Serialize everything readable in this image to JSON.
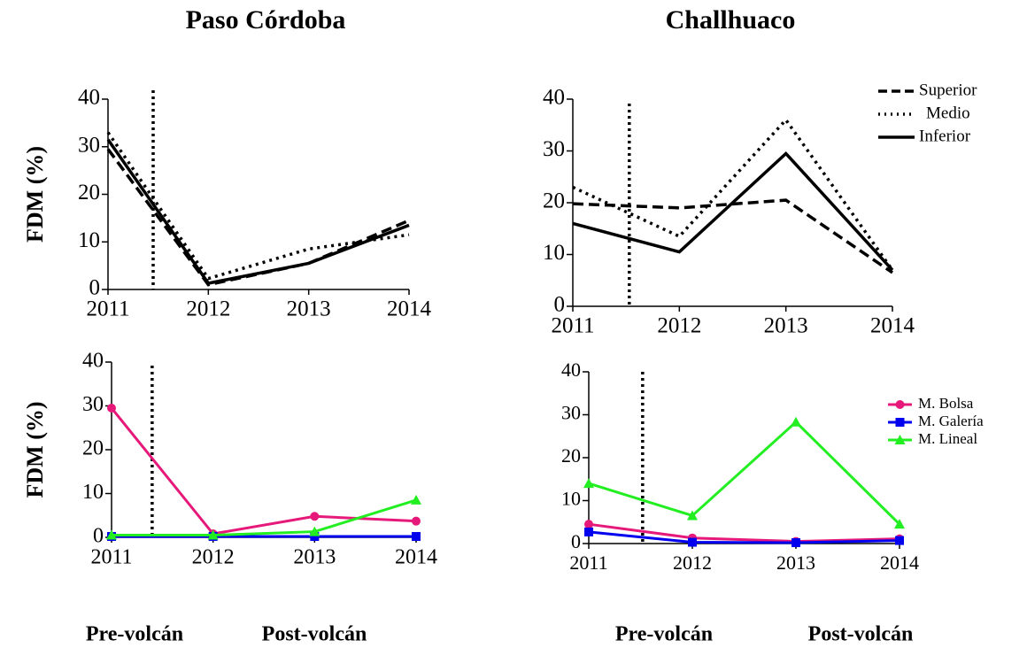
{
  "chart_data": [
    {
      "type": "line",
      "title": "Paso Córdoba",
      "y_label": "FDM (%)",
      "x": [
        2011,
        2012,
        2013,
        2014
      ],
      "xlim": [
        2011,
        2014
      ],
      "xticks": [
        2011,
        2012,
        2013,
        2014
      ],
      "ylim": [
        0,
        40
      ],
      "yticks": [
        0,
        10,
        20,
        30,
        40
      ],
      "event_x": 2011.45,
      "series": [
        {
          "name": "Superior",
          "color": "#000000",
          "dash": "dashed",
          "values": [
            29.5,
            1,
            5.5,
            14.5
          ]
        },
        {
          "name": "Medio",
          "color": "#000000",
          "dash": "dotted",
          "values": [
            33,
            2.3,
            8.5,
            11.5
          ]
        },
        {
          "name": "Inferior",
          "color": "#000000",
          "dash": "solid",
          "values": [
            31.5,
            1.3,
            5.5,
            13.5
          ]
        }
      ]
    },
    {
      "type": "line",
      "title": "Challhuaco",
      "legend": "top-right",
      "x": [
        2011,
        2012,
        2013,
        2014
      ],
      "xlim": [
        2011,
        2014
      ],
      "xticks": [
        2011,
        2012,
        2013,
        2014
      ],
      "ylim": [
        0,
        40
      ],
      "yticks": [
        0,
        10,
        20,
        30,
        40
      ],
      "event_x": 2011.53,
      "series": [
        {
          "name": "Superior",
          "color": "#000000",
          "dash": "dashed",
          "values": [
            19.8,
            19,
            20.5,
            6.5
          ]
        },
        {
          "name": "Medio",
          "color": "#000000",
          "dash": "dotted",
          "values": [
            23,
            13.5,
            36,
            7
          ]
        },
        {
          "name": "Inferior",
          "color": "#000000",
          "dash": "solid",
          "values": [
            16,
            10.5,
            29.5,
            7
          ]
        }
      ]
    },
    {
      "type": "line",
      "y_label": "FDM (%)",
      "annotations": [
        "Pre-volcán",
        "Post-volcán"
      ],
      "x": [
        2011,
        2012,
        2013,
        2014
      ],
      "xlim": [
        2011,
        2014
      ],
      "xticks": [
        2011,
        2012,
        2013,
        2014
      ],
      "ylim": [
        0,
        40
      ],
      "yticks": [
        0,
        10,
        20,
        30,
        40
      ],
      "event_x": 2011.4,
      "series": [
        {
          "name": "M. Bolsa",
          "color": "#e6197a",
          "marker": "circle",
          "values": [
            29.5,
            0.8,
            4.8,
            3.7
          ]
        },
        {
          "name": "M. Galería",
          "color": "#0000ee",
          "marker": "square",
          "values": [
            0.2,
            0.2,
            0.2,
            0.2
          ]
        },
        {
          "name": "M. Lineal",
          "color": "#22ee22",
          "marker": "triangle",
          "values": [
            0.5,
            0.5,
            1.3,
            8.5
          ]
        }
      ]
    },
    {
      "type": "line",
      "legend": "top-right",
      "annotations": [
        "Pre-volcán",
        "Post-volcán"
      ],
      "x": [
        2011,
        2012,
        2013,
        2014
      ],
      "xlim": [
        2011,
        2014
      ],
      "xticks": [
        2011,
        2012,
        2013,
        2014
      ],
      "ylim": [
        0,
        40
      ],
      "yticks": [
        0,
        10,
        20,
        30,
        40
      ],
      "event_x": 2011.52,
      "series": [
        {
          "name": "M. Bolsa",
          "color": "#e6197a",
          "marker": "circle",
          "values": [
            4.5,
            1.3,
            0.5,
            1.1
          ]
        },
        {
          "name": "M. Galería",
          "color": "#0000ee",
          "marker": "square",
          "values": [
            2.7,
            0.3,
            0.2,
            0.7
          ]
        },
        {
          "name": "M. Lineal",
          "color": "#22ee22",
          "marker": "triangle",
          "values": [
            14,
            6.5,
            28.3,
            4.5
          ]
        }
      ]
    }
  ]
}
